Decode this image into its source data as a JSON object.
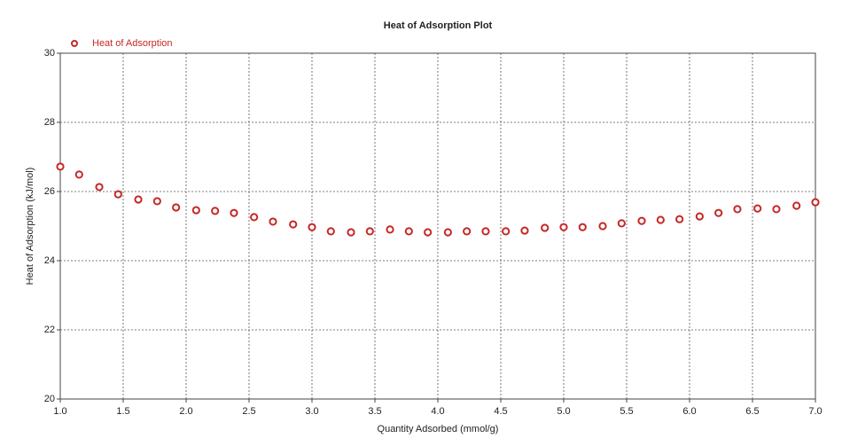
{
  "chart_data": {
    "type": "scatter",
    "title": "Heat of Adsorption Plot",
    "x_label": "Quantity Adsorbed (mmol/g)",
    "y_label": "Heat of Adsorption (kJ/mol)",
    "xlim": [
      1,
      7
    ],
    "ylim": [
      20,
      30
    ],
    "xticks": [
      {
        "value": 1,
        "label": "1.0"
      },
      {
        "value": 1.5,
        "label": "1.5"
      },
      {
        "value": 2,
        "label": "2.0"
      },
      {
        "value": 2.5,
        "label": "2.5"
      },
      {
        "value": 3,
        "label": "3.0"
      },
      {
        "value": 3.5,
        "label": "3.5"
      },
      {
        "value": 4,
        "label": "4.0"
      },
      {
        "value": 4.5,
        "label": "4.5"
      },
      {
        "value": 5,
        "label": "5.0"
      },
      {
        "value": 5.5,
        "label": "5.5"
      },
      {
        "value": 6,
        "label": "6.0"
      },
      {
        "value": 6.5,
        "label": "6.5"
      },
      {
        "value": 7,
        "label": "7.0"
      }
    ],
    "yticks": [
      20,
      22,
      24,
      26,
      28,
      30
    ],
    "grid": true,
    "legend": "top-left",
    "series": [
      {
        "name": "Heat of Adsorption",
        "color": "#c62828",
        "x": [
          1.0,
          1.15,
          1.31,
          1.46,
          1.62,
          1.77,
          1.92,
          2.08,
          2.23,
          2.38,
          2.54,
          2.69,
          2.85,
          3.0,
          3.15,
          3.31,
          3.46,
          3.62,
          3.77,
          3.92,
          4.08,
          4.23,
          4.38,
          4.54,
          4.69,
          4.85,
          5.0,
          5.15,
          5.31,
          5.46,
          5.62,
          5.77,
          5.92,
          6.08,
          6.23,
          6.38,
          6.54,
          6.69,
          6.85,
          7.0
        ],
        "values": [
          26.72,
          26.49,
          26.13,
          25.92,
          25.77,
          25.72,
          25.54,
          25.46,
          25.44,
          25.38,
          25.26,
          25.13,
          25.05,
          24.97,
          24.85,
          24.82,
          24.85,
          24.9,
          24.85,
          24.82,
          24.82,
          24.85,
          24.85,
          24.85,
          24.87,
          24.95,
          24.97,
          24.97,
          25.0,
          25.08,
          25.15,
          25.18,
          25.2,
          25.28,
          25.38,
          25.49,
          25.51,
          25.49,
          25.59,
          25.69
        ]
      }
    ]
  }
}
